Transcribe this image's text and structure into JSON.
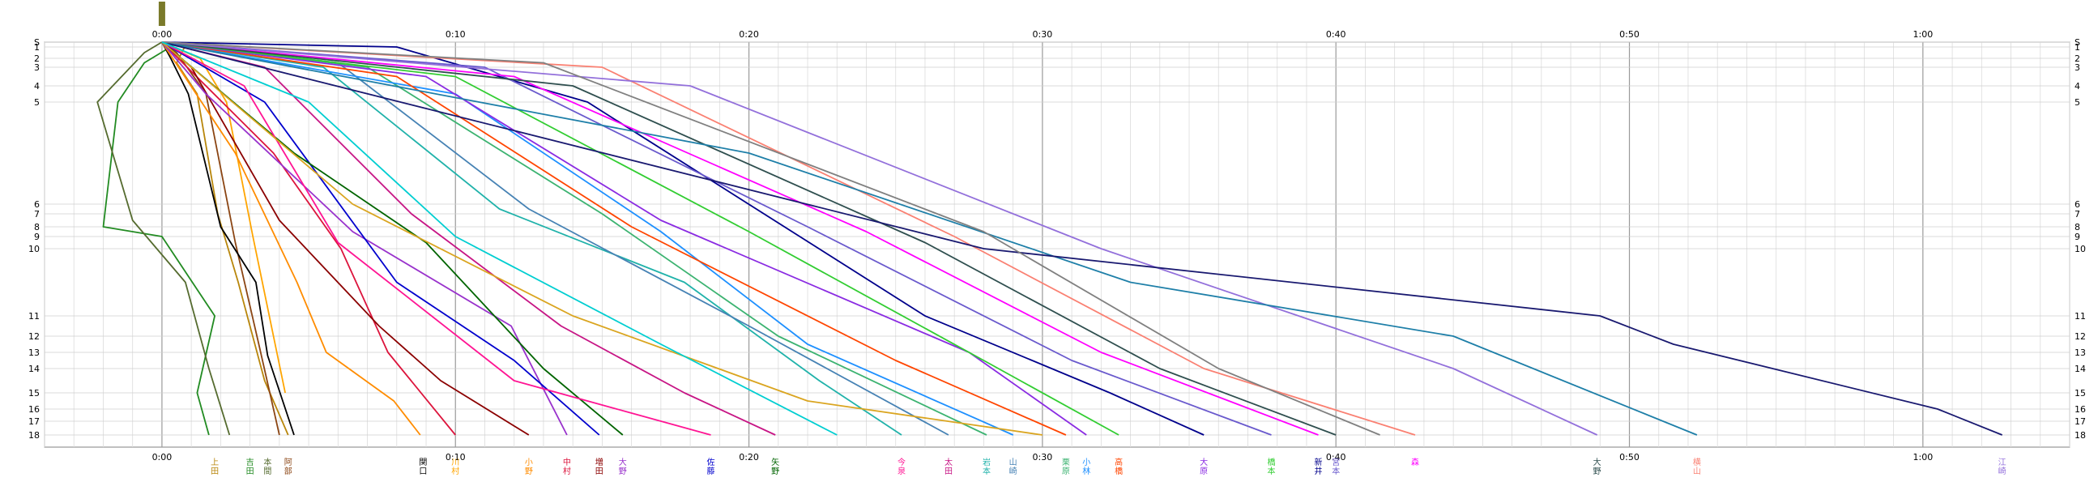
{
  "chart_data": {
    "type": "line",
    "title": "",
    "xlabel": "",
    "ylabel": "",
    "x_unit": "h:mm",
    "xlim_minutes": [
      -4,
      65
    ],
    "x_ticks": [
      "0:00",
      "0:10",
      "0:20",
      "0:30",
      "0:40",
      "0:50",
      "1:00"
    ],
    "x_tick_minutes": [
      0,
      10,
      20,
      30,
      40,
      50,
      60
    ],
    "y_ticks": [
      "S",
      "1",
      "2",
      "3",
      "4",
      "5",
      "6",
      "7",
      "8",
      "9",
      "10",
      "11",
      "12",
      "13",
      "14",
      "15",
      "16",
      "17",
      "18"
    ],
    "grid": true,
    "legend": "none",
    "start_marker_color": "#7a7a2a",
    "bottom_labels": [
      "上田",
      "吉田",
      "本間",
      "阿部",
      "関口",
      "川村",
      "小野",
      "中村",
      "増田",
      "大野",
      "佐藤",
      "矢野",
      "今泉",
      "太田",
      "岩本",
      "山崎",
      "栗原",
      "小林",
      "高橋",
      "大原",
      "橋本",
      "新井",
      "宮本",
      "森",
      "大野",
      "横山",
      "江崎"
    ],
    "bottom_label_minutes": [
      1.8,
      3.0,
      3.6,
      4.3,
      8.9,
      10.0,
      12.5,
      13.8,
      14.9,
      15.7,
      18.7,
      20.9,
      25.2,
      26.8,
      28.1,
      29.0,
      30.8,
      31.5,
      32.6,
      35.5,
      37.8,
      39.4,
      40.0,
      42.7,
      48.9,
      52.3,
      62.7
    ],
    "series": [
      {
        "color": "#b8860b",
        "x": [
          0,
          0.8,
          0.5,
          1.2,
          1.9,
          2.6,
          3.5,
          4.3
        ],
        "y": [
          0,
          0.7,
          2.5,
          4.5,
          7,
          10.5,
          14.5,
          18
        ]
      },
      {
        "color": "#228b22",
        "x": [
          0,
          0.4,
          -0.6,
          -1.5,
          -2.0,
          0.0,
          1.8,
          1.2,
          1.6
        ],
        "y": [
          0,
          0.6,
          2.5,
          5,
          8,
          9,
          11,
          15,
          18
        ]
      },
      {
        "color": "#556b2f",
        "x": [
          0,
          -0.6,
          -2.2,
          -1.0,
          0.8,
          1.6,
          2.3
        ],
        "y": [
          0,
          1.5,
          5,
          7.5,
          10.5,
          14,
          18
        ]
      },
      {
        "color": "#8b4513",
        "x": [
          0,
          0.5,
          1.5,
          2.5,
          3.3,
          4.0
        ],
        "y": [
          0,
          1.5,
          4.5,
          9.5,
          12.5,
          18
        ]
      },
      {
        "color": "#000000",
        "x": [
          0,
          0.3,
          0.9,
          2.0,
          3.2,
          3.6,
          4.5
        ],
        "y": [
          0,
          2.0,
          4.5,
          8.0,
          10.5,
          13.2,
          18
        ]
      },
      {
        "color": "#ffa500",
        "x": [
          0,
          1.3,
          2.2,
          3.1,
          3.8,
          4.2
        ],
        "y": [
          0,
          2,
          5,
          9,
          12,
          15
        ]
      },
      {
        "color": "#ff8c00",
        "x": [
          0,
          2.5,
          4.6,
          5.6,
          7.9,
          8.8
        ],
        "y": [
          0,
          5.5,
          10.5,
          13,
          15.5,
          18
        ]
      },
      {
        "color": "#dc143c",
        "x": [
          0,
          3.8,
          6.1,
          7.7,
          10.0
        ],
        "y": [
          0,
          5.5,
          10,
          13,
          18
        ]
      },
      {
        "color": "#8b0000",
        "x": [
          0,
          1.0,
          4.0,
          7.4,
          9.5,
          12.5
        ],
        "y": [
          0,
          3.0,
          7.5,
          11.5,
          14.5,
          18
        ]
      },
      {
        "color": "#9932cc",
        "x": [
          0,
          1.5,
          6.5,
          11.9,
          13.8
        ],
        "y": [
          0,
          4.5,
          8.5,
          11.5,
          18
        ]
      },
      {
        "color": "#0000cd",
        "x": [
          0,
          3.5,
          8.0,
          12.0,
          14.9
        ],
        "y": [
          0,
          5.0,
          10.5,
          13.5,
          18
        ]
      },
      {
        "color": "#006400",
        "x": [
          0,
          4.5,
          9.0,
          13.0,
          15.7
        ],
        "y": [
          0,
          5.5,
          9.5,
          14.0,
          18
        ]
      },
      {
        "color": "#ff1493",
        "x": [
          0,
          2.8,
          6.0,
          12.0,
          18.7
        ],
        "y": [
          0,
          4.0,
          9.5,
          14.5,
          18
        ]
      },
      {
        "color": "#c71585",
        "x": [
          0,
          3.5,
          8.5,
          13.6,
          17.8,
          20.9
        ],
        "y": [
          0,
          3.0,
          7.0,
          11.5,
          15.0,
          18
        ]
      },
      {
        "color": "#20b2aa",
        "x": [
          0,
          5.5,
          11.5,
          17.8,
          22.4,
          25.2
        ],
        "y": [
          0,
          3.0,
          6.5,
          10.5,
          14.5,
          18
        ]
      },
      {
        "color": "#4682b4",
        "x": [
          0,
          6.0,
          12.5,
          20.0,
          26.8
        ],
        "y": [
          0,
          2.5,
          6.5,
          11.5,
          18
        ]
      },
      {
        "color": "#3cb371",
        "x": [
          0,
          7.0,
          15.0,
          21.0,
          28.1
        ],
        "y": [
          0,
          3.0,
          7.0,
          12.0,
          18
        ]
      },
      {
        "color": "#1e90ff",
        "x": [
          0,
          10.0,
          17.0,
          22.0,
          29.0
        ],
        "y": [
          0,
          4.5,
          8.5,
          12.5,
          18
        ]
      },
      {
        "color": "#ff4500",
        "x": [
          0,
          8.0,
          16.0,
          25.0,
          30.8
        ],
        "y": [
          0,
          3.5,
          8.0,
          13.5,
          18
        ]
      },
      {
        "color": "#8a2be2",
        "x": [
          0,
          9.0,
          17.0,
          27.5,
          31.5
        ],
        "y": [
          0,
          3.5,
          7.5,
          13.0,
          18
        ]
      },
      {
        "color": "#32cd32",
        "x": [
          0,
          10.0,
          20.0,
          28.0,
          32.6
        ],
        "y": [
          0,
          3.5,
          8.5,
          13.5,
          18
        ]
      },
      {
        "color": "#00008b",
        "x": [
          0,
          8.0,
          14.5,
          26.0,
          32.3,
          35.5
        ],
        "y": [
          0,
          1.0,
          5.0,
          11.0,
          15.0,
          18
        ]
      },
      {
        "color": "#6a5acd",
        "x": [
          0,
          11.0,
          22.0,
          31.0,
          37.8
        ],
        "y": [
          0,
          3.0,
          8.0,
          13.5,
          18
        ]
      },
      {
        "color": "#ff00ff",
        "x": [
          0,
          12.0,
          24.0,
          32.0,
          39.4
        ],
        "y": [
          0,
          3.5,
          8.5,
          13.0,
          18
        ]
      },
      {
        "color": "#2f4f4f",
        "x": [
          0,
          14.0,
          26.0,
          34.0,
          40.0
        ],
        "y": [
          0,
          4.0,
          9.5,
          14.0,
          18
        ]
      },
      {
        "color": "#fa8072",
        "x": [
          0,
          15.0,
          27.0,
          35.5,
          42.7
        ],
        "y": [
          0,
          3.0,
          9.0,
          14.0,
          18
        ]
      },
      {
        "color": "#9370db",
        "x": [
          0,
          18.0,
          32.0,
          44.0,
          48.9
        ],
        "y": [
          0,
          4.0,
          10.0,
          14.0,
          18
        ]
      },
      {
        "color": "#1e7fa8",
        "x": [
          0,
          20.0,
          33.0,
          44.0,
          52.3
        ],
        "y": [
          0,
          5.5,
          10.5,
          12.0,
          18
        ]
      },
      {
        "color": "#191970",
        "x": [
          0,
          28.0,
          49.0,
          51.5,
          60.5,
          62.7
        ],
        "y": [
          0,
          10.0,
          11.0,
          12.5,
          16.0,
          18
        ]
      },
      {
        "color": "#808080",
        "x": [
          0,
          13.0,
          28.0,
          36.0,
          41.5
        ],
        "y": [
          0,
          2.5,
          8.5,
          14.0,
          18
        ]
      },
      {
        "color": "#daa520",
        "x": [
          0,
          6.5,
          14.0,
          22.0,
          30.0
        ],
        "y": [
          0,
          6.0,
          11.0,
          15.5,
          18
        ]
      },
      {
        "color": "#00ced1",
        "x": [
          0,
          5.0,
          10.0,
          17.0,
          23.0
        ],
        "y": [
          0,
          5.0,
          9.0,
          12.5,
          18
        ]
      }
    ]
  }
}
